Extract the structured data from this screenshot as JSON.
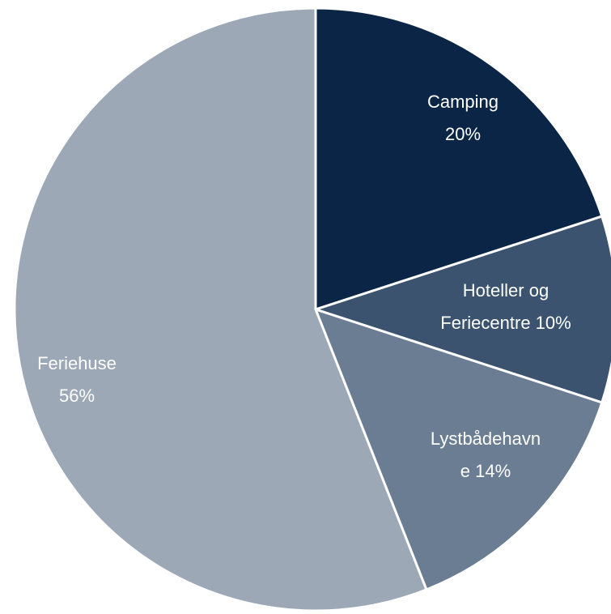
{
  "chart_data": {
    "type": "pie",
    "categories": [
      "Camping",
      "Hoteller og Feriecentre",
      "Lystbådehavne",
      "Feriehuse"
    ],
    "values": [
      20,
      10,
      14,
      56
    ],
    "value_labels": [
      "20%",
      "10%",
      "14%",
      "56%"
    ],
    "colors": [
      "#0b2546",
      "#3b536e",
      "#6a7d92",
      "#9ca8b6"
    ]
  }
}
